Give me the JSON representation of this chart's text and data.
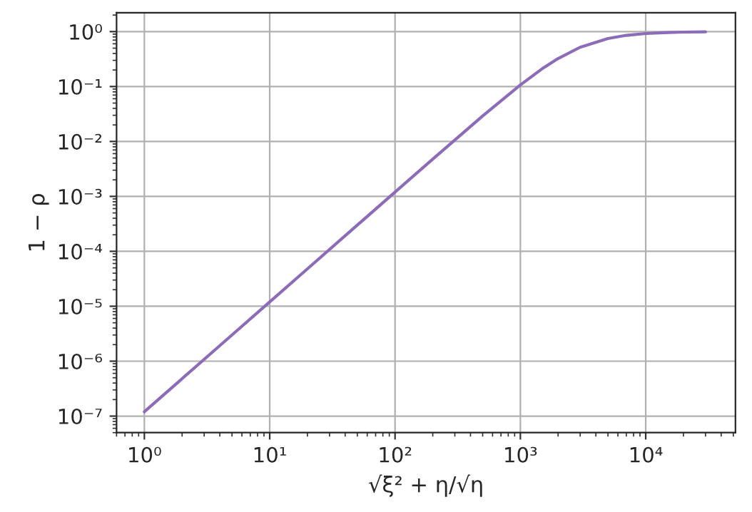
{
  "chart_data": {
    "type": "line",
    "xlabel": "√ξ² + η/√η",
    "ylabel": "1 − ρ",
    "x": [
      1,
      2,
      5,
      10,
      20,
      50,
      100,
      200,
      500,
      1000,
      1500,
      2000,
      3000,
      5000,
      7000,
      10000,
      15000,
      20000,
      30000
    ],
    "series": [
      {
        "color": "#8c6bb8",
        "line_style": "solid",
        "values": [
          1.2e-07,
          4.8e-07,
          3e-06,
          1.2e-05,
          4.8e-05,
          0.0003,
          0.0012,
          0.00478,
          0.0291,
          0.107,
          0.213,
          0.324,
          0.519,
          0.75,
          0.855,
          0.923,
          0.964,
          0.98,
          0.991
        ]
      }
    ],
    "log": "xy",
    "xlim": [
      0.6,
      52000
    ],
    "ylim": [
      5e-08,
      2.2
    ],
    "xticks": [
      {
        "value": 1,
        "label": "10⁰"
      },
      {
        "value": 10,
        "label": "10¹"
      },
      {
        "value": 100,
        "label": "10²"
      },
      {
        "value": 1000,
        "label": "10³"
      },
      {
        "value": 10000,
        "label": "10⁴"
      }
    ],
    "yticks": [
      {
        "value": 1e-07,
        "label": "10⁻⁷"
      },
      {
        "value": 1e-06,
        "label": "10⁻⁶"
      },
      {
        "value": 1e-05,
        "label": "10⁻⁵"
      },
      {
        "value": 0.0001,
        "label": "10⁻⁴"
      },
      {
        "value": 0.001,
        "label": "10⁻³"
      },
      {
        "value": 0.01,
        "label": "10⁻²"
      },
      {
        "value": 0.1,
        "label": "10⁻¹"
      },
      {
        "value": 1,
        "label": "10⁰"
      }
    ],
    "grid": true
  }
}
